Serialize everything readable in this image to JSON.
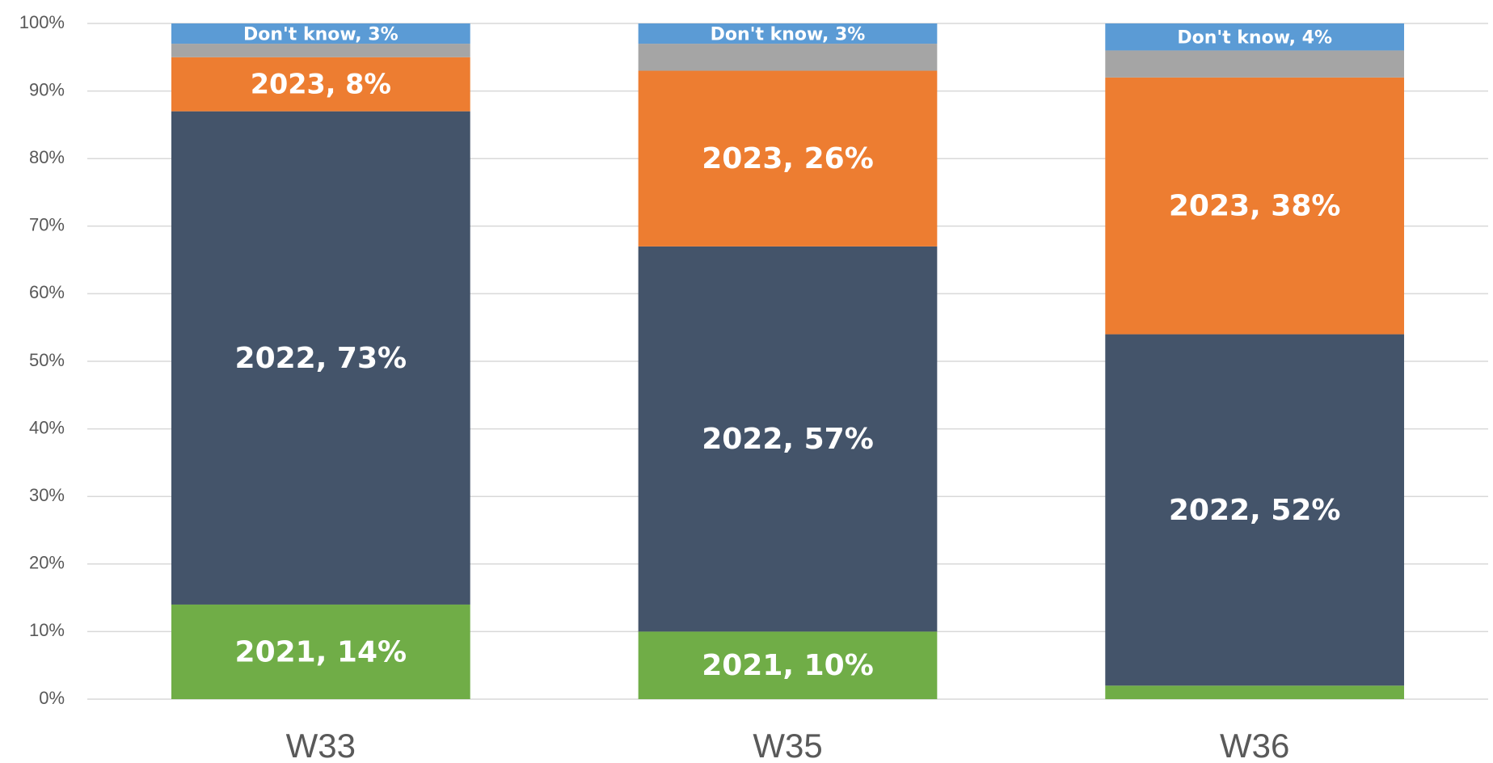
{
  "chart_data": {
    "type": "stacked_bar",
    "categories": [
      "W33",
      "W35",
      "W36"
    ],
    "series": [
      {
        "color": "#70ad47",
        "values": [
          14,
          10,
          2
        ],
        "value_labels": [
          "2021, 14%",
          "2021, 10%",
          null
        ]
      },
      {
        "color": "#44546a",
        "values": [
          73,
          57,
          52
        ],
        "value_labels": [
          "2022, 73%",
          "2022, 57%",
          "2022, 52%"
        ]
      },
      {
        "color": "#ed7d31",
        "values": [
          8,
          26,
          38
        ],
        "value_labels": [
          "2023, 8%",
          "2023, 26%",
          "2023, 38%"
        ]
      },
      {
        "color": "#a5a5a5",
        "values": [
          2,
          4,
          4
        ]
      },
      {
        "color": "#5b9bd5",
        "values": [
          3,
          3,
          4
        ],
        "value_labels": [
          "Don't know, 3%",
          "Don't know, 3%",
          "Don't know, 4%"
        ]
      }
    ],
    "ylim": [
      0,
      100
    ],
    "yticks": [
      {
        "value": 0,
        "label": "0%"
      },
      {
        "value": 10,
        "label": "10%"
      },
      {
        "value": 20,
        "label": "20%"
      },
      {
        "value": 30,
        "label": "30%"
      },
      {
        "value": 40,
        "label": "40%"
      },
      {
        "value": 50,
        "label": "50%"
      },
      {
        "value": 60,
        "label": "60%"
      },
      {
        "value": 70,
        "label": "70%"
      },
      {
        "value": 80,
        "label": "80%"
      },
      {
        "value": 90,
        "label": "90%"
      },
      {
        "value": 100,
        "label": "100%"
      }
    ],
    "grid": true
  }
}
